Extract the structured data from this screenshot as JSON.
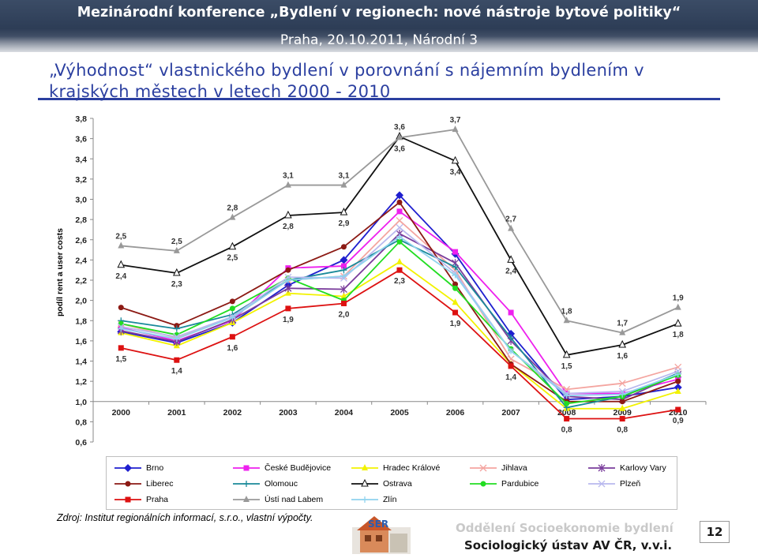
{
  "header": {
    "title": "Mezinárodní konference „Bydlení v regionech: nové nástroje bytové politiky“",
    "subtitle": "Praha, 20.10.2011, Národní 3"
  },
  "slide": {
    "title": "„Výhodnost“ vlastnického bydlení v porovnání s nájemním bydlením v krajských městech v letech 2000 - 2010"
  },
  "footer": {
    "source": "Zdroj:  Institut regionálních informací, s.r.o., vlastní výpočty.",
    "dept_line1": "Oddělení Socioekonomie bydlení",
    "dept_line2": "Sociologický ústav AV ČR, v.v.i.",
    "page_number": "12"
  },
  "chart_data": {
    "type": "line",
    "ylabel": "podíl rent a user costs",
    "xlabel": "",
    "ylim": [
      0.6,
      3.8
    ],
    "yticks": [
      "0,6",
      "0,8",
      "1,0",
      "1,2",
      "1,4",
      "1,6",
      "1,8",
      "2,0",
      "2,2",
      "2,4",
      "2,6",
      "2,8",
      "3,0",
      "3,2",
      "3,4",
      "3,6",
      "3,8"
    ],
    "x": [
      "2000",
      "2001",
      "2002",
      "2003",
      "2004",
      "2005",
      "2006",
      "2007",
      "2008",
      "2009",
      "2010"
    ],
    "grid": "none",
    "legend": "bottom",
    "series": [
      {
        "name": "Brno",
        "color": "#1f1fcf",
        "marker": "diamond",
        "values": [
          1.69,
          1.58,
          1.78,
          2.15,
          2.4,
          3.04,
          2.46,
          1.67,
          1.02,
          1.05,
          1.14
        ]
      },
      {
        "name": "České Budějovice",
        "color": "#ee20ee",
        "marker": "square",
        "values": [
          1.73,
          1.6,
          1.8,
          2.32,
          2.34,
          2.88,
          2.48,
          1.88,
          1.08,
          1.08,
          1.22
        ]
      },
      {
        "name": "Hradec Králové",
        "color": "#f2f200",
        "marker": "triangle",
        "values": [
          1.68,
          1.55,
          1.78,
          2.07,
          2.04,
          2.38,
          1.98,
          1.37,
          0.93,
          0.93,
          1.1
        ]
      },
      {
        "name": "Jihlava",
        "color": "#f4a5a0",
        "marker": "x",
        "values": [
          1.77,
          1.63,
          1.83,
          2.2,
          2.24,
          2.79,
          2.3,
          1.42,
          1.12,
          1.18,
          1.34
        ]
      },
      {
        "name": "Karlovy Vary",
        "color": "#7a3d9c",
        "marker": "star",
        "values": [
          1.7,
          1.59,
          1.81,
          2.12,
          2.11,
          2.66,
          2.37,
          1.6,
          1.05,
          1.02,
          1.27
        ]
      },
      {
        "name": "Liberec",
        "color": "#8c1a14",
        "marker": "circle",
        "values": [
          1.93,
          1.75,
          1.99,
          2.3,
          2.53,
          2.97,
          2.16,
          1.37,
          1.0,
          1.0,
          1.2
        ]
      },
      {
        "name": "Olomouc",
        "color": "#1a8a9a",
        "marker": "plus",
        "values": [
          1.8,
          1.72,
          1.86,
          2.2,
          2.3,
          2.6,
          2.33,
          1.63,
          0.94,
          1.05,
          1.28
        ]
      },
      {
        "name": "Ostrava",
        "color": "#111111",
        "marker": "triangle-open",
        "values": [
          2.35,
          2.27,
          2.53,
          2.84,
          2.87,
          3.62,
          3.38,
          2.4,
          1.46,
          1.56,
          1.77
        ]
      },
      {
        "name": "Pardubice",
        "color": "#22dd22",
        "marker": "circle",
        "values": [
          1.77,
          1.66,
          1.92,
          2.22,
          2.0,
          2.58,
          2.12,
          1.52,
          0.98,
          1.05,
          1.26
        ]
      },
      {
        "name": "Plzeň",
        "color": "#b8b8ee",
        "marker": "x",
        "values": [
          1.74,
          1.64,
          1.84,
          2.23,
          2.22,
          2.72,
          2.27,
          1.5,
          1.08,
          1.1,
          1.3
        ]
      },
      {
        "name": "Praha",
        "color": "#dd1111",
        "marker": "square",
        "values": [
          1.53,
          1.41,
          1.64,
          1.92,
          1.97,
          2.3,
          1.88,
          1.35,
          0.83,
          0.83,
          0.92
        ]
      },
      {
        "name": "Ústí nad Labem",
        "color": "#999999",
        "marker": "triangle",
        "values": [
          2.54,
          2.49,
          2.82,
          3.14,
          3.14,
          3.61,
          3.69,
          2.71,
          1.8,
          1.68,
          1.93
        ]
      },
      {
        "name": "Zlín",
        "color": "#8fd3ee",
        "marker": "plus",
        "values": [
          1.72,
          1.62,
          1.83,
          2.2,
          2.24,
          2.63,
          2.25,
          1.5,
          1.06,
          1.07,
          1.27
        ]
      }
    ],
    "annotations": [
      {
        "x": "2000",
        "y": 2.54,
        "text": "2,5",
        "pos": "above"
      },
      {
        "x": "2000",
        "y": 2.35,
        "text": "2,4",
        "pos": "below"
      },
      {
        "x": "2000",
        "y": 1.53,
        "text": "1,5",
        "pos": "below"
      },
      {
        "x": "2001",
        "y": 2.49,
        "text": "2,5",
        "pos": "above"
      },
      {
        "x": "2001",
        "y": 2.27,
        "text": "2,3",
        "pos": "below"
      },
      {
        "x": "2001",
        "y": 1.41,
        "text": "1,4",
        "pos": "below"
      },
      {
        "x": "2002",
        "y": 2.82,
        "text": "2,8",
        "pos": "above"
      },
      {
        "x": "2002",
        "y": 2.53,
        "text": "2,5",
        "pos": "below"
      },
      {
        "x": "2002",
        "y": 1.64,
        "text": "1,6",
        "pos": "below"
      },
      {
        "x": "2003",
        "y": 3.14,
        "text": "3,1",
        "pos": "above"
      },
      {
        "x": "2003",
        "y": 2.84,
        "text": "2,8",
        "pos": "below"
      },
      {
        "x": "2003",
        "y": 1.92,
        "text": "1,9",
        "pos": "below"
      },
      {
        "x": "2004",
        "y": 3.14,
        "text": "3,1",
        "pos": "above"
      },
      {
        "x": "2004",
        "y": 2.87,
        "text": "2,9",
        "pos": "below"
      },
      {
        "x": "2004",
        "y": 1.97,
        "text": "2,0",
        "pos": "below"
      },
      {
        "x": "2005",
        "y": 3.62,
        "text": "3,6",
        "pos": "above"
      },
      {
        "x": "2005",
        "y": 3.61,
        "text": "3,6",
        "pos": "below"
      },
      {
        "x": "2005",
        "y": 2.3,
        "text": "2,3",
        "pos": "below"
      },
      {
        "x": "2006",
        "y": 3.69,
        "text": "3,7",
        "pos": "above"
      },
      {
        "x": "2006",
        "y": 3.38,
        "text": "3,4",
        "pos": "below"
      },
      {
        "x": "2006",
        "y": 1.88,
        "text": "1,9",
        "pos": "below"
      },
      {
        "x": "2007",
        "y": 2.71,
        "text": "2,7",
        "pos": "above"
      },
      {
        "x": "2007",
        "y": 2.4,
        "text": "2,4",
        "pos": "below"
      },
      {
        "x": "2007",
        "y": 1.35,
        "text": "1,4",
        "pos": "below"
      },
      {
        "x": "2008",
        "y": 1.8,
        "text": "1,8",
        "pos": "above"
      },
      {
        "x": "2008",
        "y": 1.46,
        "text": "1,5",
        "pos": "below"
      },
      {
        "x": "2008",
        "y": 0.83,
        "text": "0,8",
        "pos": "below"
      },
      {
        "x": "2009",
        "y": 1.68,
        "text": "1,7",
        "pos": "above"
      },
      {
        "x": "2009",
        "y": 1.56,
        "text": "1,6",
        "pos": "below"
      },
      {
        "x": "2009",
        "y": 0.83,
        "text": "0,8",
        "pos": "below"
      },
      {
        "x": "2010",
        "y": 1.93,
        "text": "1,9",
        "pos": "above"
      },
      {
        "x": "2010",
        "y": 1.77,
        "text": "1,8",
        "pos": "below"
      },
      {
        "x": "2010",
        "y": 0.92,
        "text": "0,9",
        "pos": "below"
      }
    ]
  }
}
